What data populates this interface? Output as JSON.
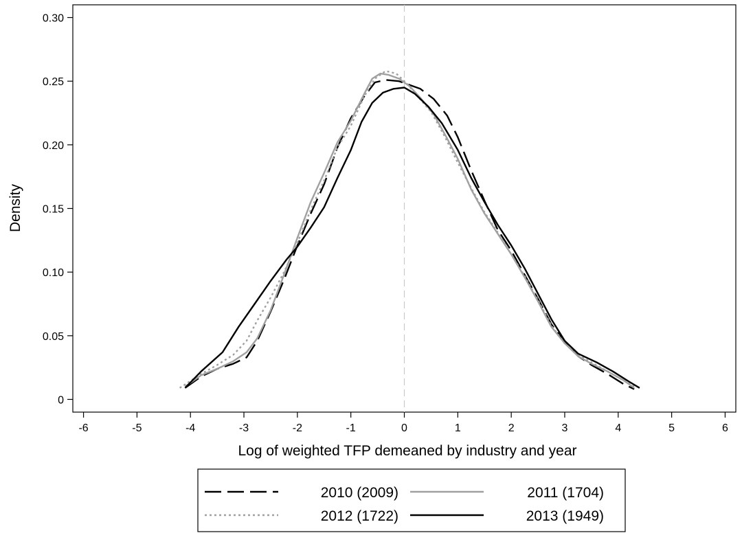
{
  "chart_data": {
    "type": "line",
    "title": "",
    "xlabel": "Log of weighted TFP demeaned by industry and year",
    "ylabel": "Density",
    "xlim": [
      -6.2,
      6.2
    ],
    "ylim": [
      -0.01,
      0.31
    ],
    "xticks": [
      -6,
      -5,
      -4,
      -3,
      -2,
      -1,
      0,
      1,
      2,
      3,
      4,
      5,
      6
    ],
    "xtick_labels": [
      "-6",
      "-5",
      "-4",
      "-3",
      "-2",
      "-1",
      "0",
      "1",
      "2",
      "3",
      "4",
      "5",
      "6"
    ],
    "yticks": [
      0,
      0.05,
      0.1,
      0.15,
      0.2,
      0.25,
      0.3
    ],
    "ytick_labels": [
      "0",
      "0.05",
      "0.10",
      "0.15",
      "0.20",
      "0.25",
      "0.30"
    ],
    "grid": false,
    "vline": {
      "x": 0,
      "color": "#c8c8c8",
      "style": "dashed"
    },
    "legend": {
      "position": "bottom",
      "columns": 2,
      "boxed": true
    },
    "series": [
      {
        "name": "2010 (2009)",
        "color": "#000000",
        "style": "longdash",
        "x": [
          -4.1,
          -3.8,
          -3.5,
          -3.2,
          -2.95,
          -2.75,
          -2.5,
          -2.25,
          -2.0,
          -1.75,
          -1.5,
          -1.25,
          -1.0,
          -0.75,
          -0.55,
          -0.35,
          -0.1,
          0.1,
          0.3,
          0.55,
          0.8,
          1.0,
          1.25,
          1.5,
          1.75,
          2.0,
          2.25,
          2.5,
          2.75,
          3.0,
          3.25,
          3.5,
          3.8,
          4.1,
          4.3
        ],
        "y": [
          0.009,
          0.018,
          0.024,
          0.028,
          0.033,
          0.046,
          0.069,
          0.094,
          0.121,
          0.146,
          0.169,
          0.198,
          0.221,
          0.238,
          0.249,
          0.251,
          0.25,
          0.247,
          0.244,
          0.236,
          0.223,
          0.206,
          0.18,
          0.156,
          0.133,
          0.117,
          0.098,
          0.079,
          0.059,
          0.045,
          0.034,
          0.027,
          0.02,
          0.012,
          0.008
        ]
      },
      {
        "name": "2011 (1704)",
        "color": "#a0a0a0",
        "style": "solid",
        "x": [
          -4.1,
          -3.8,
          -3.5,
          -3.2,
          -2.95,
          -2.75,
          -2.5,
          -2.25,
          -2.0,
          -1.75,
          -1.5,
          -1.25,
          -1.0,
          -0.75,
          -0.6,
          -0.45,
          -0.3,
          -0.1,
          0.1,
          0.3,
          0.55,
          0.8,
          1.0,
          1.25,
          1.5,
          1.75,
          2.0,
          2.25,
          2.5,
          2.75,
          3.0,
          3.25,
          3.5,
          3.8,
          4.1,
          4.3
        ],
        "y": [
          0.01,
          0.019,
          0.024,
          0.03,
          0.037,
          0.048,
          0.07,
          0.098,
          0.127,
          0.155,
          0.178,
          0.202,
          0.219,
          0.24,
          0.252,
          0.256,
          0.255,
          0.252,
          0.246,
          0.237,
          0.224,
          0.205,
          0.189,
          0.165,
          0.146,
          0.13,
          0.114,
          0.096,
          0.077,
          0.057,
          0.044,
          0.034,
          0.028,
          0.022,
          0.015,
          0.009
        ]
      },
      {
        "name": "2012 (1722)",
        "color": "#a0a0a0",
        "style": "dotted",
        "x": [
          -4.2,
          -3.8,
          -3.5,
          -3.2,
          -2.95,
          -2.75,
          -2.5,
          -2.25,
          -2.0,
          -1.75,
          -1.5,
          -1.25,
          -1.0,
          -0.75,
          -0.55,
          -0.35,
          -0.15,
          0.05,
          0.25,
          0.5,
          0.75,
          1.0,
          1.25,
          1.5,
          1.75,
          2.0,
          2.25,
          2.5,
          2.75,
          3.0,
          3.25,
          3.5,
          3.8,
          4.1,
          4.3
        ],
        "y": [
          0.009,
          0.02,
          0.027,
          0.035,
          0.046,
          0.062,
          0.08,
          0.1,
          0.123,
          0.149,
          0.172,
          0.198,
          0.215,
          0.238,
          0.252,
          0.258,
          0.256,
          0.248,
          0.238,
          0.226,
          0.207,
          0.186,
          0.166,
          0.147,
          0.131,
          0.114,
          0.097,
          0.078,
          0.058,
          0.044,
          0.035,
          0.029,
          0.022,
          0.015,
          0.01
        ]
      },
      {
        "name": "2013 (1949)",
        "color": "#000000",
        "style": "solid",
        "x": [
          -4.1,
          -3.8,
          -3.4,
          -3.1,
          -2.8,
          -2.5,
          -2.2,
          -2.0,
          -1.75,
          -1.5,
          -1.25,
          -1.0,
          -0.8,
          -0.6,
          -0.4,
          -0.2,
          0.0,
          0.2,
          0.45,
          0.7,
          1.0,
          1.25,
          1.5,
          1.75,
          2.0,
          2.25,
          2.5,
          2.75,
          3.0,
          3.25,
          3.6,
          3.9,
          4.2,
          4.4
        ],
        "y": [
          0.009,
          0.022,
          0.037,
          0.057,
          0.075,
          0.093,
          0.11,
          0.12,
          0.135,
          0.151,
          0.174,
          0.196,
          0.218,
          0.233,
          0.241,
          0.244,
          0.245,
          0.24,
          0.23,
          0.217,
          0.196,
          0.174,
          0.155,
          0.137,
          0.121,
          0.103,
          0.083,
          0.063,
          0.046,
          0.036,
          0.029,
          0.022,
          0.014,
          0.009
        ]
      }
    ]
  }
}
